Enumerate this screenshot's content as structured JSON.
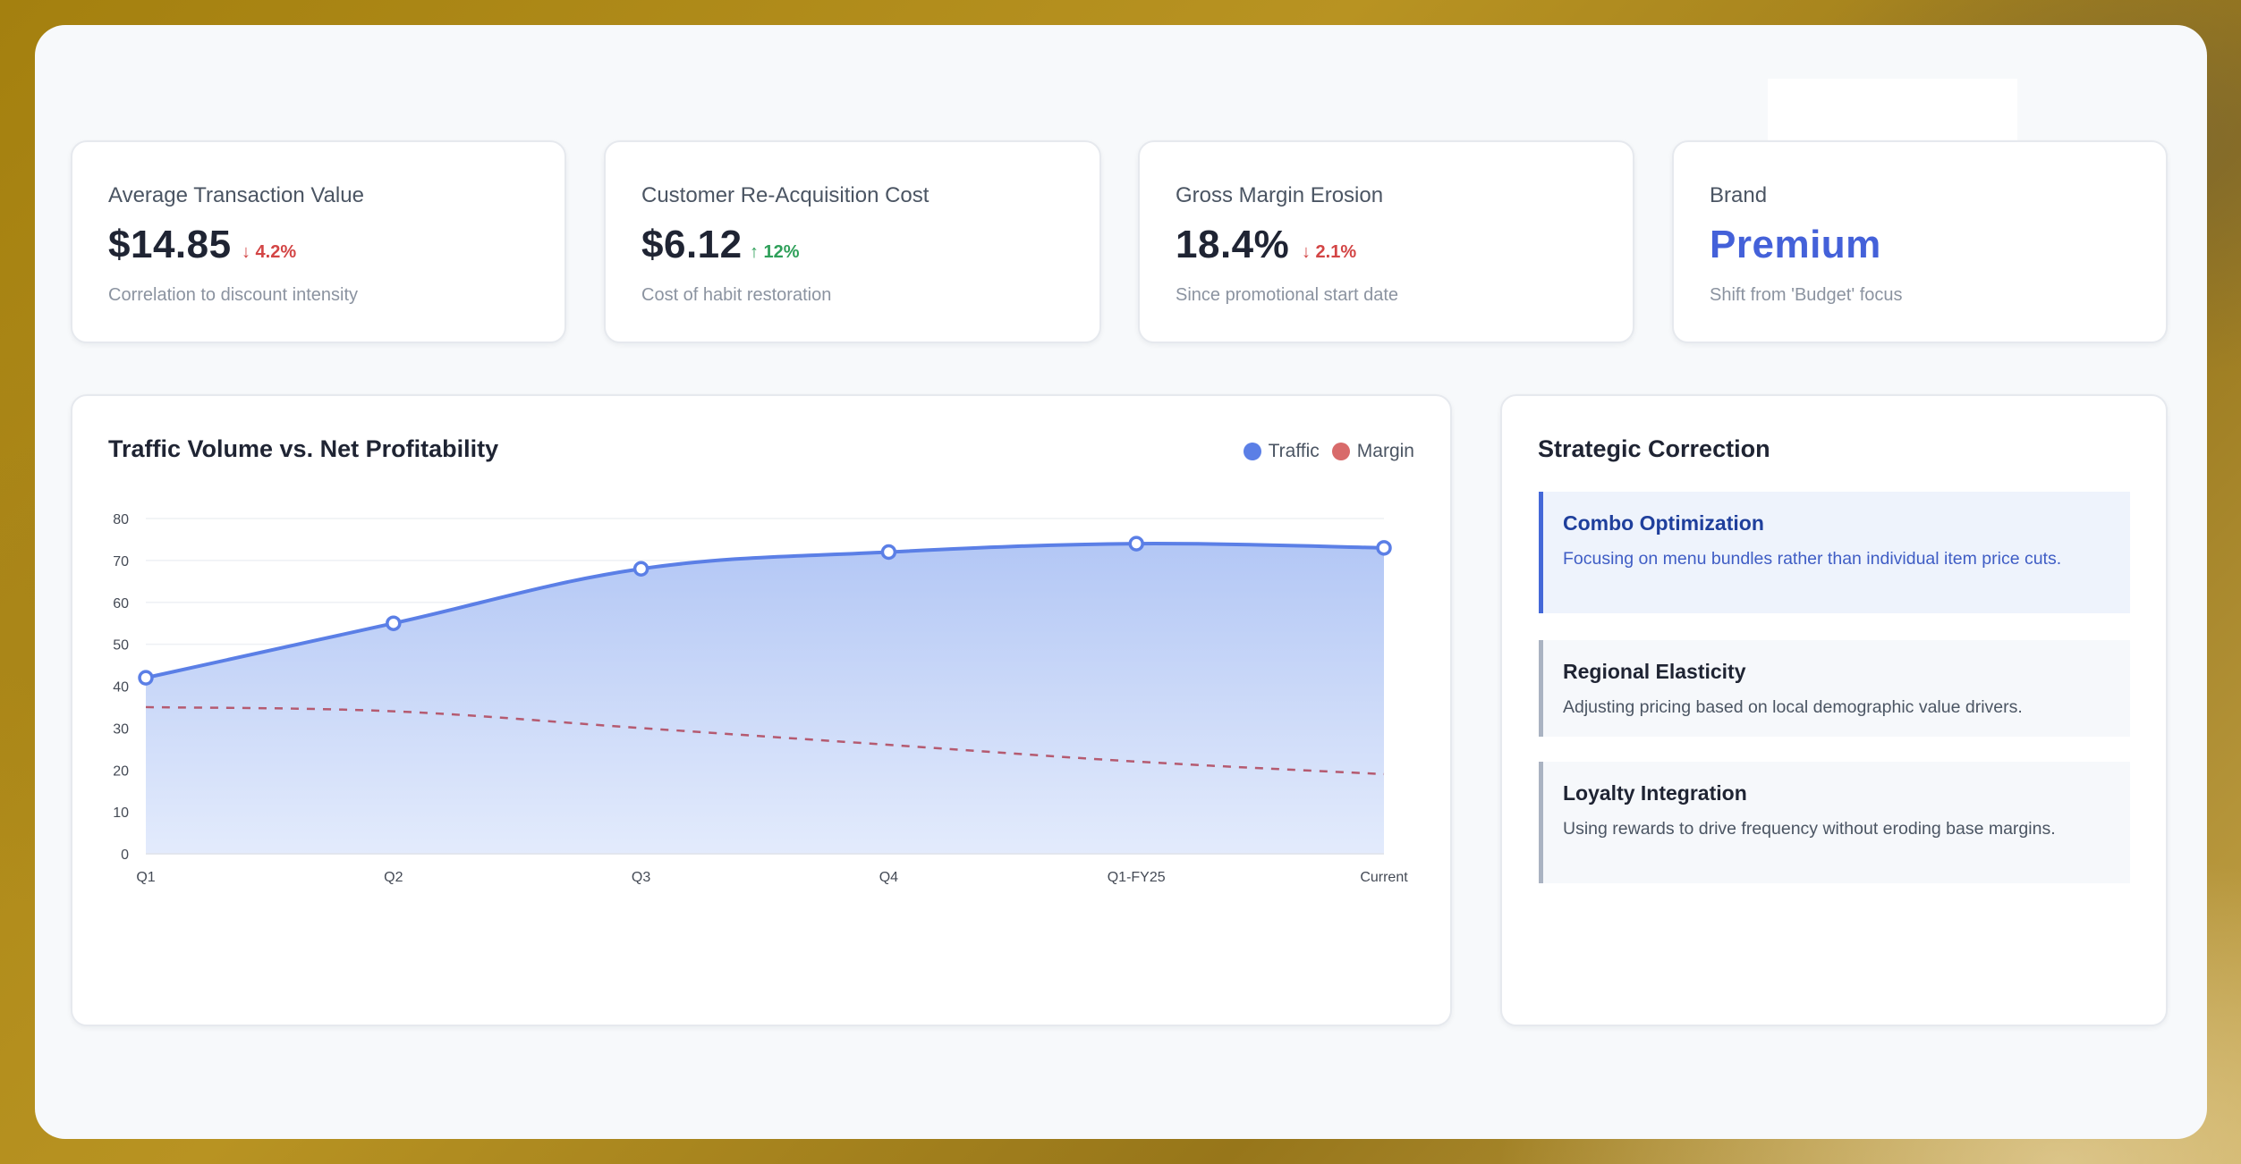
{
  "kpis": [
    {
      "label": "Average Transaction Value",
      "value": "$14.85",
      "delta": "↓ 4.2%",
      "direction": "down",
      "note": "Correlation to discount intensity"
    },
    {
      "label": "Customer Re-Acquisition Cost",
      "value": "$6.12",
      "delta": "↑ 12%",
      "direction": "up",
      "note": "Cost of habit restoration"
    },
    {
      "label": "Gross Margin Erosion",
      "value": "18.4%",
      "delta": "↓ 2.1%",
      "direction": "down",
      "note": "Since promotional start date"
    },
    {
      "label": "Brand",
      "value": "Premium",
      "delta": "",
      "note": "Shift from 'Budget' focus"
    }
  ],
  "chart_card": {
    "title": "Traffic Volume vs. Net Profitability",
    "legend": [
      {
        "label": "Traffic",
        "color": "#5b7fe6"
      },
      {
        "label": "Margin",
        "color": "#d86a6a"
      }
    ]
  },
  "chart_data": {
    "type": "line",
    "title": "Traffic Volume vs. Net Profitability",
    "categories": [
      "Q1",
      "Q2",
      "Q3",
      "Q4",
      "Q1-FY25",
      "Current"
    ],
    "series": [
      {
        "name": "Traffic",
        "values": [
          42,
          55,
          68,
          72,
          74,
          73
        ],
        "color": "#5b7fe6",
        "style": "solid-area"
      },
      {
        "name": "Margin",
        "values": [
          35,
          34,
          30,
          26,
          22,
          19
        ],
        "color": "#b55a70",
        "style": "dashed"
      }
    ],
    "ylim": [
      0,
      80
    ],
    "yticks": [
      0,
      10,
      20,
      30,
      40,
      50,
      60,
      70,
      80
    ],
    "grid": true,
    "legend_position": "top-right"
  },
  "strategy": {
    "title": "Strategic Correction",
    "items": [
      {
        "title": "Combo Optimization",
        "body": "Focusing on menu bundles rather than individual item price cuts."
      },
      {
        "title": "Regional Elasticity",
        "body": "Adjusting pricing based on local demographic value drivers."
      },
      {
        "title": "Loyalty Integration",
        "body": "Using rewards to drive frequency without eroding base margins."
      }
    ]
  }
}
